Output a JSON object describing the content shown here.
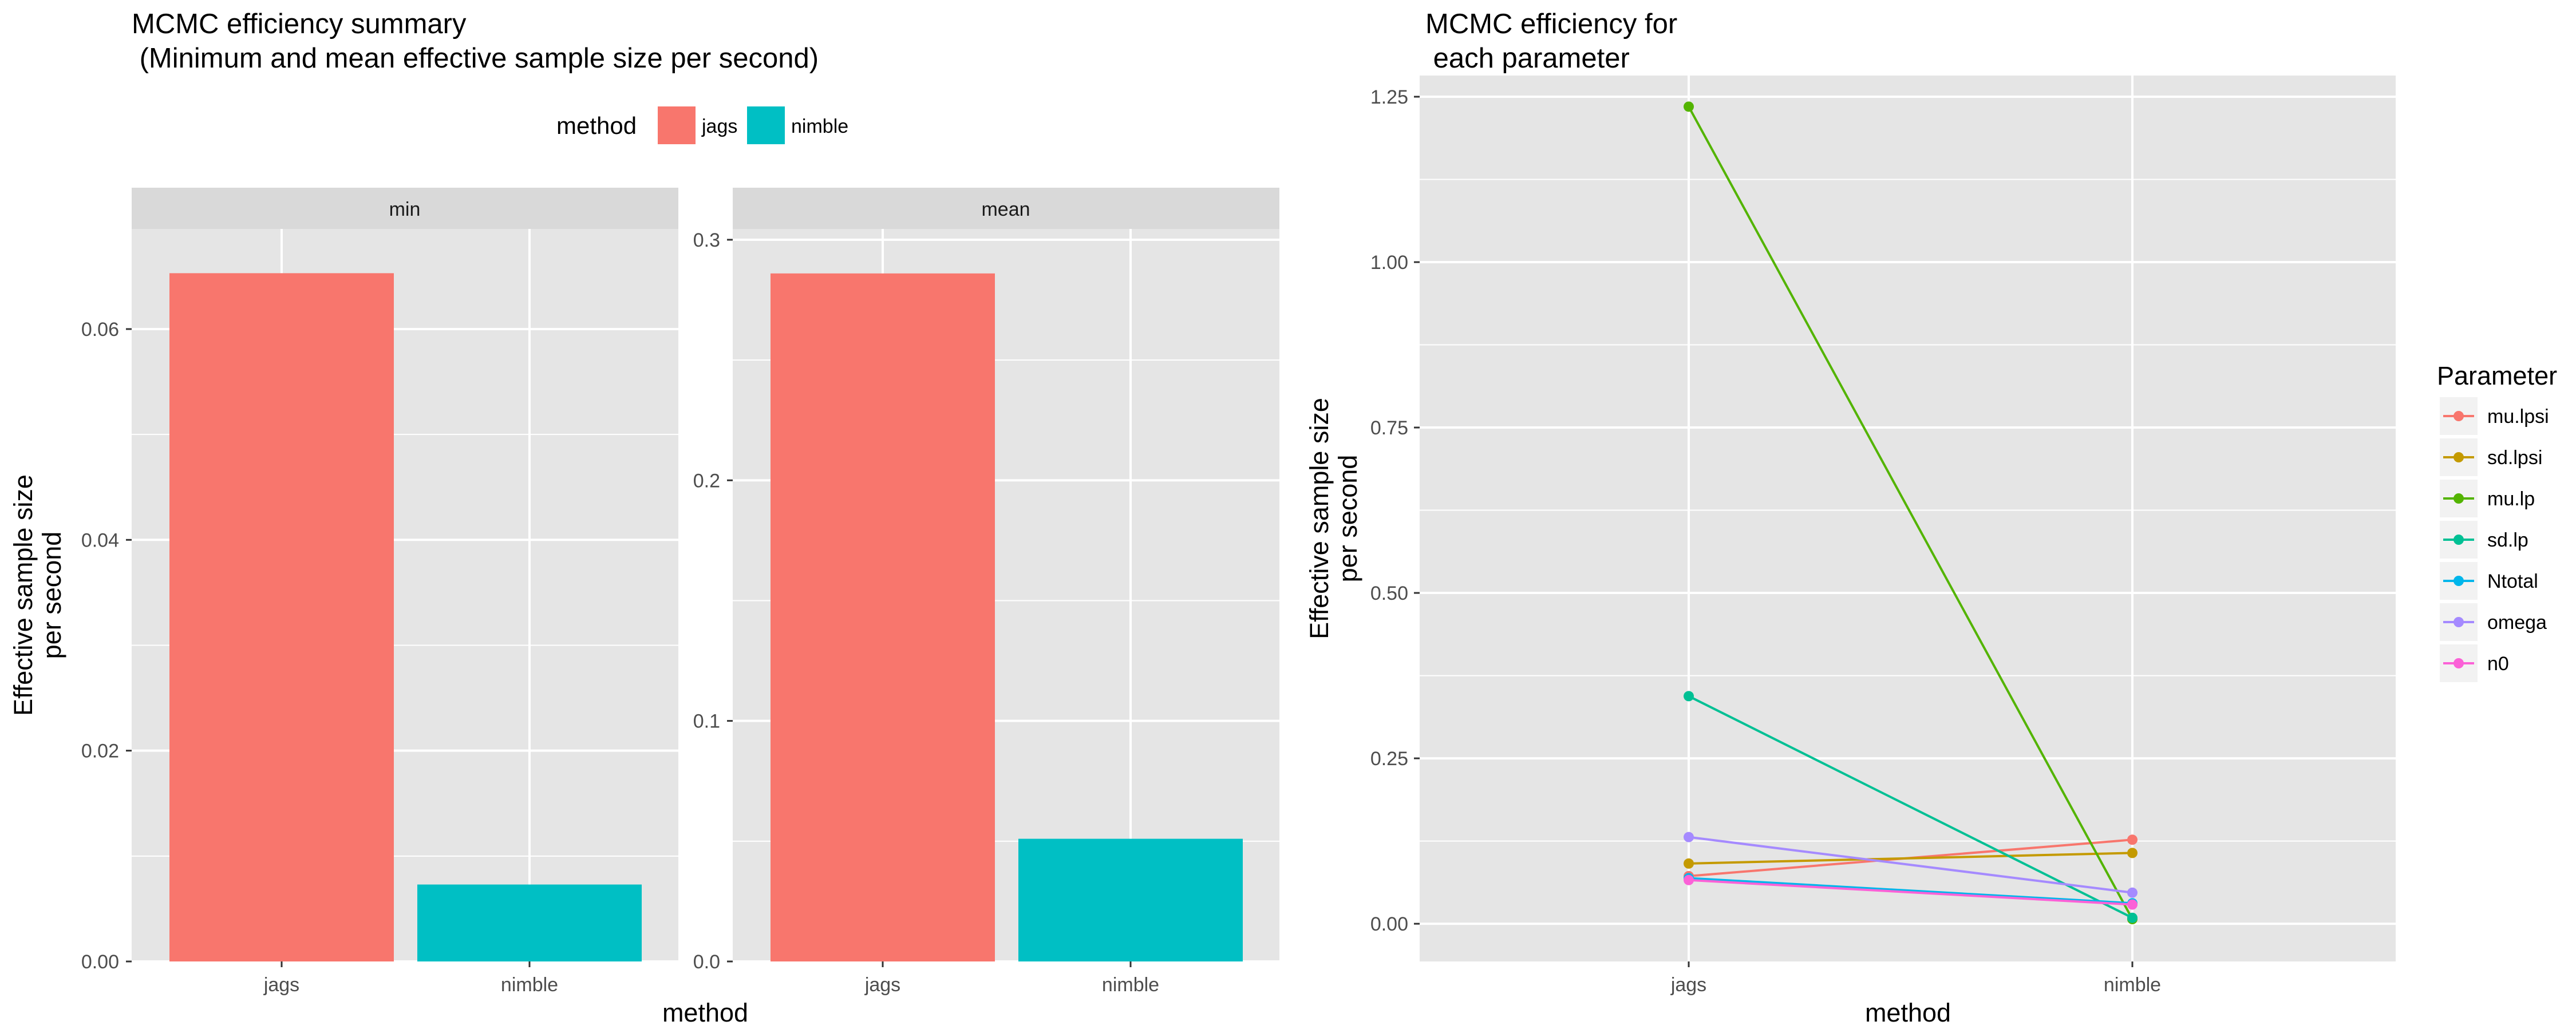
{
  "left_title_line1": "MCMC efficiency summary",
  "left_title_line2": " (Minimum and mean effective sample size per second)",
  "right_title_line1": "MCMC efficiency for",
  "right_title_line2": " each parameter",
  "shared_ylabel_line1": "Effective sample size",
  "shared_ylabel_line2": "per second",
  "shared_xlabel": "method",
  "colors": {
    "panel_bg": "#e5e5e5",
    "grid": "#ffffff",
    "strip_bg": "#d9d9d9",
    "text": "#000000",
    "axis_text": "#4d4d4d"
  },
  "chart_data": [
    {
      "type": "bar",
      "legend": {
        "title": "method",
        "placement": "top",
        "items": [
          {
            "label": "jags",
            "color": "#f8766d"
          },
          {
            "label": "nimble",
            "color": "#00bfc4"
          }
        ]
      },
      "facets": [
        {
          "strip": "min",
          "categories": [
            "jags",
            "nimble"
          ],
          "values": [
            0.0653,
            0.0073
          ],
          "colors": [
            "#f8766d",
            "#00bfc4"
          ],
          "ylim": [
            0,
            0.0695
          ],
          "yticks": [
            0.0,
            0.02,
            0.04,
            0.06
          ],
          "yticklabels": [
            "0.00",
            "0.02",
            "0.04",
            "0.06"
          ],
          "grid": true
        },
        {
          "strip": "mean",
          "categories": [
            "jags",
            "nimble"
          ],
          "values": [
            0.286,
            0.051
          ],
          "colors": [
            "#f8766d",
            "#00bfc4"
          ],
          "ylim": [
            0,
            0.3045
          ],
          "yticks": [
            0.0,
            0.1,
            0.2,
            0.3
          ],
          "yticklabels": [
            "0.0",
            "0.1",
            "0.2",
            "0.3"
          ],
          "grid": true
        }
      ]
    },
    {
      "type": "line",
      "x": [
        "jags",
        "nimble"
      ],
      "ylim": [
        -0.057,
        1.282
      ],
      "yticks": [
        0.0,
        0.25,
        0.5,
        0.75,
        1.0,
        1.25
      ],
      "yticklabels": [
        "0.00",
        "0.25",
        "0.50",
        "0.75",
        "1.00",
        "1.25"
      ],
      "grid": true,
      "legend": {
        "title": "Parameter",
        "placement": "right"
      },
      "series": [
        {
          "name": "mu.lpsi",
          "color": "#f8766d",
          "values": [
            0.072,
            0.127
          ]
        },
        {
          "name": "sd.lpsi",
          "color": "#c49a00",
          "values": [
            0.091,
            0.107
          ]
        },
        {
          "name": "mu.lp",
          "color": "#53b400",
          "values": [
            1.235,
            0.007
          ]
        },
        {
          "name": "sd.lp",
          "color": "#00c094",
          "values": [
            0.344,
            0.009
          ]
        },
        {
          "name": "Ntotal",
          "color": "#00b6eb",
          "values": [
            0.069,
            0.031
          ]
        },
        {
          "name": "omega",
          "color": "#a58aff",
          "values": [
            0.131,
            0.047
          ]
        },
        {
          "name": "n0",
          "color": "#fb61d7",
          "values": [
            0.066,
            0.029
          ]
        }
      ]
    }
  ]
}
